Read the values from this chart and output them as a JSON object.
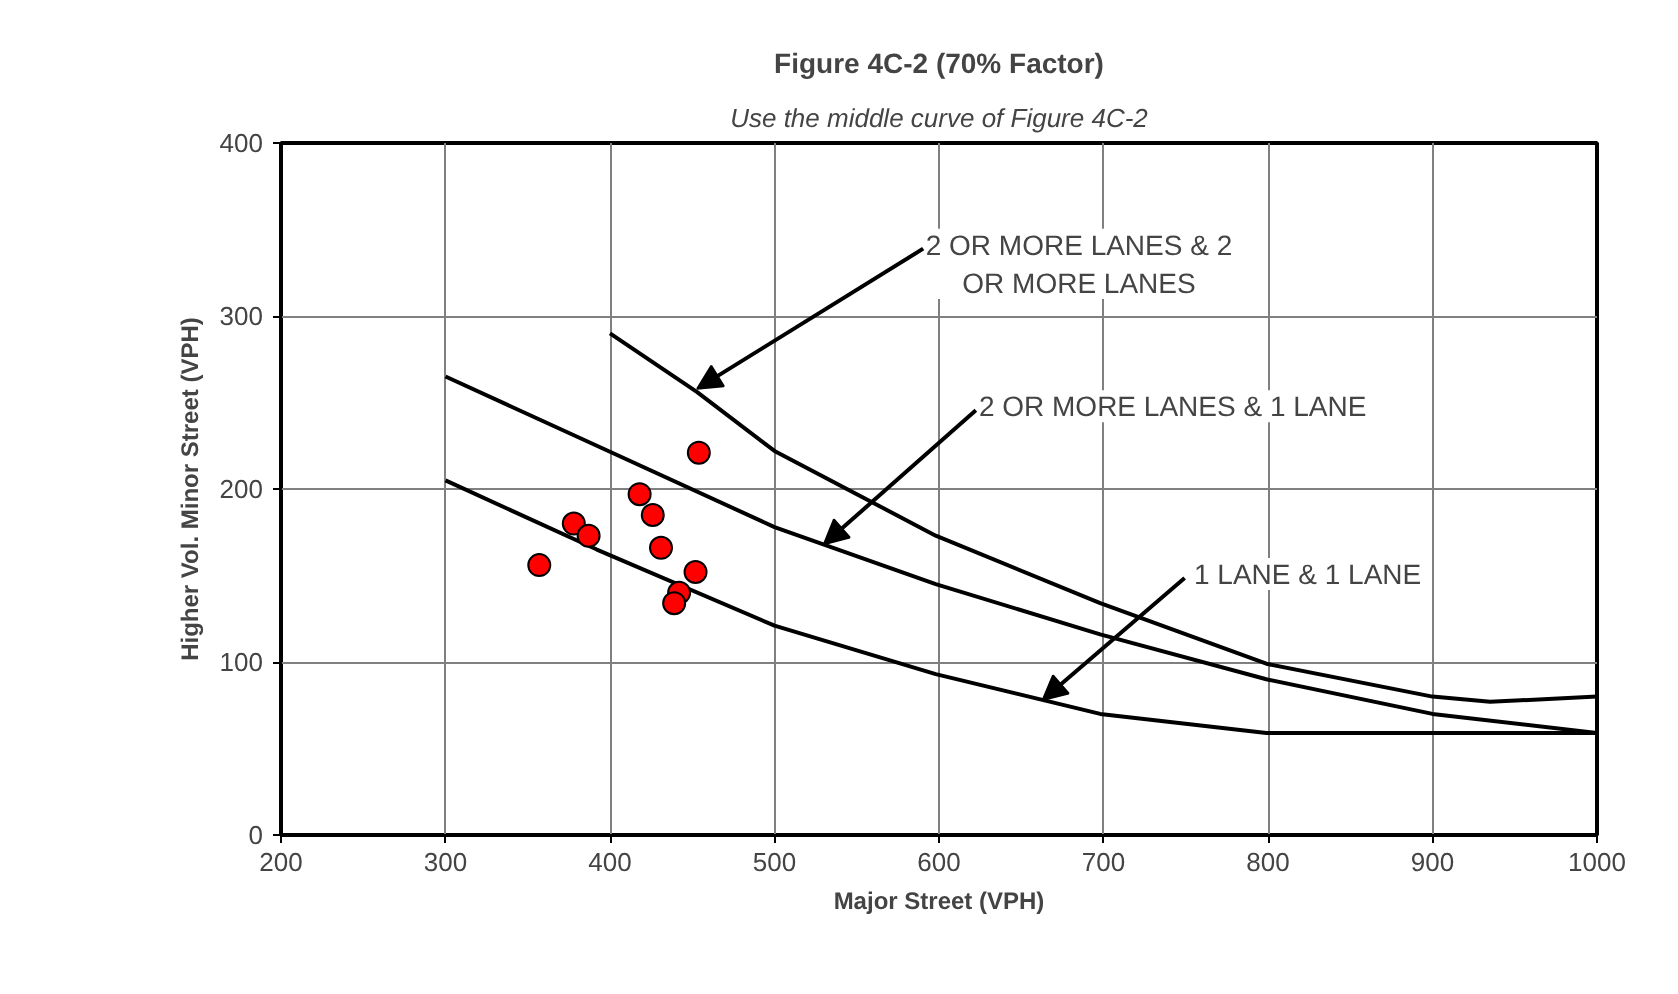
{
  "chart_data": {
    "type": "line",
    "title": "Figure 4C-2 (70% Factor)",
    "xlabel": "Major Street (VPH)",
    "ylabel": "Higher Vol. Minor Street (VPH)",
    "xlim": [
      200,
      1000
    ],
    "ylim": [
      0,
      400
    ],
    "xticks": [
      200,
      300,
      400,
      500,
      600,
      700,
      800,
      900,
      1000
    ],
    "yticks": [
      0,
      100,
      200,
      300,
      400
    ],
    "grid": true,
    "line_style": "solid",
    "marker": "none",
    "series": [
      {
        "color": "#000000",
        "x": [
          400,
          453,
          500,
          598,
          698,
          799,
          900,
          935,
          1000
        ],
        "values": [
          290,
          256,
          222,
          173,
          134,
          99,
          80,
          77,
          80
        ]
      },
      {
        "color": "#000000",
        "x": [
          300,
          392,
          500,
          598,
          698,
          799,
          900,
          1000
        ],
        "values": [
          265,
          225,
          178,
          145,
          116,
          90,
          70,
          59
        ]
      },
      {
        "color": "#000000",
        "x": [
          300,
          392,
          500,
          598,
          698,
          799,
          826,
          1000
        ],
        "values": [
          205,
          165,
          121,
          93,
          70,
          59,
          59,
          59
        ]
      },
      {
        "type": "scatter",
        "marker": "circle",
        "color": "#ff0000",
        "x": [
          357,
          378,
          387,
          418,
          426,
          431,
          454,
          452,
          442,
          439
        ],
        "values": [
          156,
          180,
          173,
          197,
          185,
          166,
          221,
          152,
          140,
          134
        ]
      }
    ],
    "annotations": [
      "Use the middle curve of Figure 4C-2",
      {
        "text": "2 OR MORE LANES & 2 OR MORE LANES",
        "x": 453,
        "y": 258
      },
      {
        "text": "2 OR MORE LANES & 1 LANE",
        "x": 530,
        "y": 168
      },
      {
        "text": "1 LANE & 1 LANE",
        "x": 663,
        "y": 78
      }
    ]
  }
}
